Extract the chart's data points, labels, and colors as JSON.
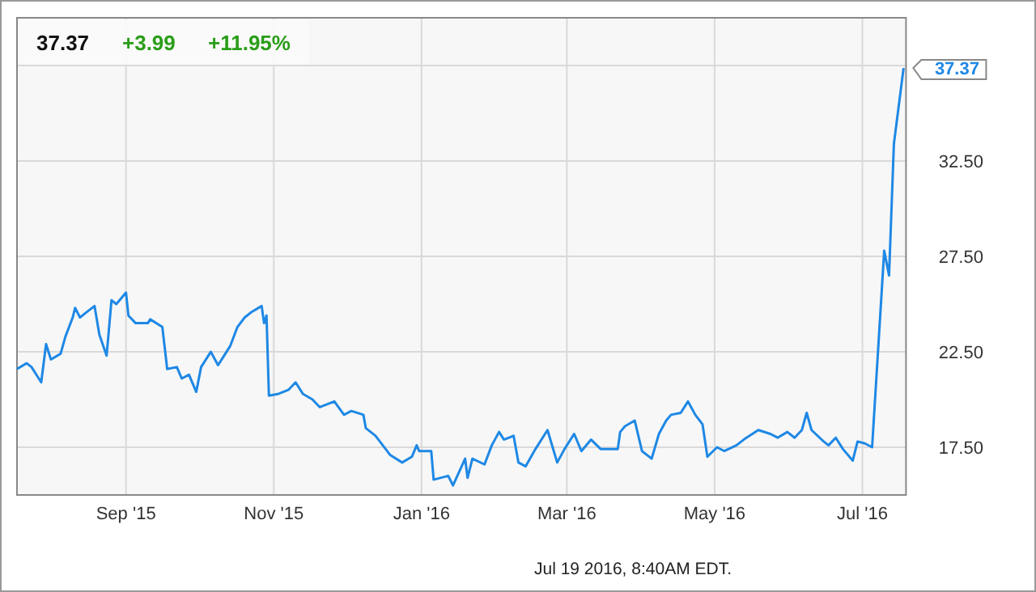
{
  "chart_data": {
    "type": "line",
    "xlim": [
      "2015-07-18",
      "2016-07-19"
    ],
    "xticks": [
      {
        "value": "2015-09-01",
        "label": "Sep '15"
      },
      {
        "value": "2015-11-01",
        "label": "Nov '15"
      },
      {
        "value": "2016-01-01",
        "label": "Jan '16"
      },
      {
        "value": "2016-03-01",
        "label": "Mar '16"
      },
      {
        "value": "2016-05-01",
        "label": "May '16"
      },
      {
        "value": "2016-07-01",
        "label": "Jul '16"
      }
    ],
    "ylim": [
      15,
      40
    ],
    "yticks": [
      {
        "value": 17.5,
        "label": "17.50"
      },
      {
        "value": 22.5,
        "label": "22.50"
      },
      {
        "value": 27.5,
        "label": "27.50"
      },
      {
        "value": 32.5,
        "label": "32.50"
      },
      {
        "value": 37.5,
        "label": null
      }
    ],
    "grid": true,
    "marker": "none",
    "line_style": "solid",
    "x": [
      "2015-07-18",
      "2015-07-22",
      "2015-07-24",
      "2015-07-28",
      "2015-07-30",
      "2015-08-01",
      "2015-08-05",
      "2015-08-07",
      "2015-08-10",
      "2015-08-11",
      "2015-08-13",
      "2015-08-16",
      "2015-08-19",
      "2015-08-21",
      "2015-08-24",
      "2015-08-26",
      "2015-08-28",
      "2015-09-01",
      "2015-09-02",
      "2015-09-05",
      "2015-09-10",
      "2015-09-11",
      "2015-09-16",
      "2015-09-18",
      "2015-09-22",
      "2015-09-24",
      "2015-09-27",
      "2015-09-30",
      "2015-10-02",
      "2015-10-06",
      "2015-10-09",
      "2015-10-11",
      "2015-10-14",
      "2015-10-17",
      "2015-10-20",
      "2015-10-23",
      "2015-10-27",
      "2015-10-28",
      "2015-10-29",
      "2015-10-30",
      "2015-11-03",
      "2015-11-07",
      "2015-11-10",
      "2015-11-13",
      "2015-11-17",
      "2015-11-20",
      "2015-11-26",
      "2015-11-30",
      "2015-12-03",
      "2015-12-08",
      "2015-12-09",
      "2015-12-13",
      "2015-12-16",
      "2015-12-19",
      "2015-12-24",
      "2015-12-28",
      "2015-12-30",
      "2015-12-31",
      "2016-01-05",
      "2016-01-06",
      "2016-01-12",
      "2016-01-14",
      "2016-01-19",
      "2016-01-20",
      "2016-01-22",
      "2016-01-27",
      "2016-01-30",
      "2016-02-02",
      "2016-02-04",
      "2016-02-08",
      "2016-02-10",
      "2016-02-13",
      "2016-02-17",
      "2016-02-22",
      "2016-02-26",
      "2016-02-29",
      "2016-03-04",
      "2016-03-07",
      "2016-03-11",
      "2016-03-15",
      "2016-03-22",
      "2016-03-23",
      "2016-03-25",
      "2016-03-29",
      "2016-04-01",
      "2016-04-05",
      "2016-04-08",
      "2016-04-11",
      "2016-04-13",
      "2016-04-17",
      "2016-04-20",
      "2016-04-23",
      "2016-04-26",
      "2016-04-28",
      "2016-05-02",
      "2016-05-05",
      "2016-05-10",
      "2016-05-13",
      "2016-05-19",
      "2016-05-24",
      "2016-05-27",
      "2016-05-31",
      "2016-06-03",
      "2016-06-06",
      "2016-06-08",
      "2016-06-10",
      "2016-06-15",
      "2016-06-17",
      "2016-06-20",
      "2016-06-23",
      "2016-06-27",
      "2016-06-29",
      "2016-07-02",
      "2016-07-05",
      "2016-07-10",
      "2016-07-12",
      "2016-07-14",
      "2016-07-18"
    ],
    "series": [
      {
        "color": "#1e88e5",
        "values": [
          21.6,
          21.9,
          21.7,
          20.9,
          22.9,
          22.1,
          22.4,
          23.3,
          24.3,
          24.8,
          24.3,
          24.6,
          24.9,
          23.4,
          22.3,
          25.2,
          25.0,
          25.6,
          24.4,
          24.0,
          24.0,
          24.2,
          23.8,
          21.6,
          21.7,
          21.1,
          21.3,
          20.4,
          21.7,
          22.5,
          21.8,
          22.2,
          22.8,
          23.8,
          24.3,
          24.6,
          24.9,
          24.0,
          24.4,
          20.2,
          20.3,
          20.5,
          20.9,
          20.3,
          20.0,
          19.6,
          19.9,
          19.2,
          19.4,
          19.2,
          18.5,
          18.1,
          17.6,
          17.1,
          16.7,
          17.0,
          17.6,
          17.3,
          17.3,
          15.8,
          16.0,
          15.5,
          16.9,
          15.9,
          16.9,
          16.6,
          17.6,
          18.3,
          17.9,
          18.1,
          16.7,
          16.5,
          17.4,
          18.4,
          16.7,
          17.4,
          18.2,
          17.3,
          17.9,
          17.4,
          17.4,
          18.3,
          18.6,
          18.9,
          17.3,
          16.9,
          18.2,
          18.9,
          19.2,
          19.3,
          19.9,
          19.2,
          18.7,
          17.0,
          17.5,
          17.3,
          17.6,
          17.9,
          18.4,
          18.2,
          18.0,
          18.3,
          18.0,
          18.4,
          19.3,
          18.4,
          17.8,
          17.6,
          18.0,
          17.4,
          16.8,
          17.8,
          17.7,
          17.5,
          27.8,
          26.5,
          33.4,
          37.37
        ]
      }
    ],
    "annotations": [
      {
        "text": "37.37",
        "x": "2016-07-18",
        "y": 37.37
      },
      "37.37",
      "+3.99",
      "+11.95%",
      "Jul 19 2016, 8:40AM EDT."
    ]
  }
}
